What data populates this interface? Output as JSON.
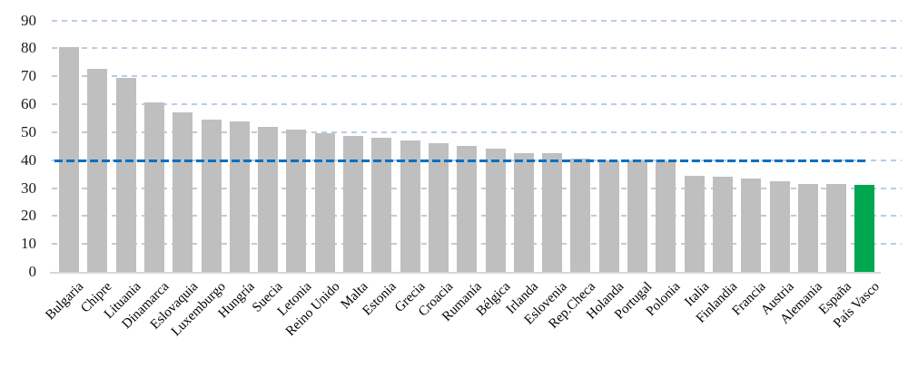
{
  "chart_data": {
    "type": "bar",
    "title": "",
    "xlabel": "",
    "ylabel": "",
    "categories": [
      "Bulgaria",
      "Chipre",
      "Lituania",
      "Dinamarca",
      "Eslovaquia",
      "Luxemburgo",
      "Hungría",
      "Suecia",
      "Letonia",
      "Reino Unido",
      "Malta",
      "Estonia",
      "Grecia",
      "Croacia",
      "Rumanía",
      "Bélgica",
      "Irlanda",
      "Eslovenia",
      "Rep.Checa",
      "Holanda",
      "Portugal",
      "Polonia",
      "Italia",
      "Finlandia",
      "Francia",
      "Austria",
      "Alemania",
      "España",
      "País Vasco"
    ],
    "values": [
      80.5,
      72.5,
      69.5,
      60.5,
      57,
      54.5,
      54,
      52,
      51,
      49.5,
      48.5,
      48,
      47,
      46,
      45,
      44,
      42.5,
      42.5,
      40.5,
      40,
      40,
      39.5,
      34.5,
      34,
      33.5,
      32.5,
      31.5,
      31.5,
      31
    ],
    "highlight_index": 28,
    "ylim": [
      0,
      90
    ],
    "yticks": [
      0,
      10,
      20,
      30,
      40,
      50,
      60,
      70,
      80,
      90
    ],
    "grid": "horizontal-dashed",
    "legend": "none",
    "reference_line": {
      "value": 39.6,
      "style": "dashed",
      "color": "#0070c0"
    },
    "colors": {
      "bar": "#bfbfbf",
      "highlight": "#00a650",
      "gridline": "#b9cde5",
      "axis_line": "#d6d6d6",
      "tick_text": "#1a1a1a",
      "label_text": "#000000"
    }
  }
}
